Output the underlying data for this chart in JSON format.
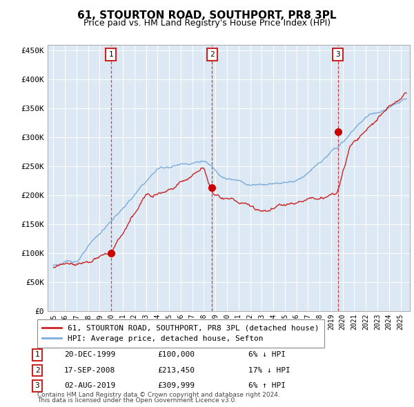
{
  "title": "61, STOURTON ROAD, SOUTHPORT, PR8 3PL",
  "subtitle": "Price paid vs. HM Land Registry's House Price Index (HPI)",
  "plot_bg_color": "#dce9f5",
  "hpi_line_color": "#7aabda",
  "price_line_color": "#cc2222",
  "marker_color": "#cc0000",
  "vline_color": "#cc2222",
  "ylim": [
    0,
    460000
  ],
  "yticks": [
    0,
    50000,
    100000,
    150000,
    200000,
    250000,
    300000,
    350000,
    400000,
    450000
  ],
  "transactions": [
    {
      "label": "1",
      "date": "20-DEC-1999",
      "price": 100000,
      "price_str": "£100,000",
      "hpi_pct": "6% ↓ HPI",
      "x_year": 1999.97
    },
    {
      "label": "2",
      "date": "17-SEP-2008",
      "price": 213450,
      "price_str": "£213,450",
      "hpi_pct": "17% ↓ HPI",
      "x_year": 2008.71
    },
    {
      "label": "3",
      "date": "02-AUG-2019",
      "price": 309999,
      "price_str": "£309,999",
      "hpi_pct": "6% ↑ HPI",
      "x_year": 2019.58
    }
  ],
  "legend_entries": [
    "61, STOURTON ROAD, SOUTHPORT, PR8 3PL (detached house)",
    "HPI: Average price, detached house, Sefton"
  ],
  "footnote1": "Contains HM Land Registry data © Crown copyright and database right 2024.",
  "footnote2": "This data is licensed under the Open Government Licence v3.0.",
  "xlim_start": 1994.5,
  "xlim_end": 2025.8
}
